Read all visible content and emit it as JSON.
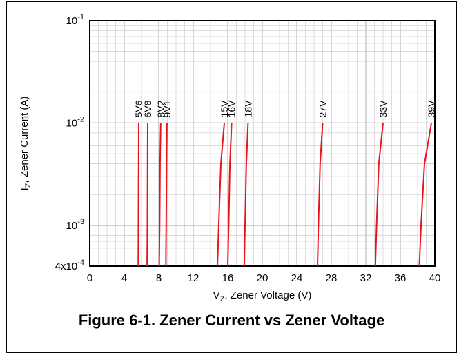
{
  "chart_data": {
    "type": "line",
    "caption": "Figure 6-1. Zener Current vs Zener Voltage",
    "xlabel_main": "V",
    "xlabel_sub": "Z",
    "xlabel_rest": ", Zener Voltage (V)",
    "ylabel_main": "I",
    "ylabel_sub": "Z",
    "ylabel_rest": ", Zener Current (A)",
    "xlim": [
      0,
      40
    ],
    "ylim": [
      0.0004,
      0.1
    ],
    "yscale": "log",
    "grid": true,
    "x_ticks": [
      0,
      4,
      8,
      12,
      16,
      20,
      24,
      28,
      32,
      36,
      40
    ],
    "y_ticks": [
      {
        "value": 0.1,
        "base": "10",
        "exp": "-1",
        "prefix": ""
      },
      {
        "value": 0.01,
        "base": "10",
        "exp": "-2",
        "prefix": ""
      },
      {
        "value": 0.001,
        "base": "10",
        "exp": "-3",
        "prefix": ""
      },
      {
        "value": 0.0004,
        "base": "10",
        "exp": "-4",
        "prefix": "4x"
      }
    ],
    "line_color": "#e8141c",
    "series": [
      {
        "name": "5V6",
        "x": [
          5.62,
          5.64,
          5.66,
          5.68
        ],
        "y": [
          0.0004,
          0.001,
          0.004,
          0.01
        ]
      },
      {
        "name": "6V8",
        "x": [
          6.65,
          6.68,
          6.7,
          6.72
        ],
        "y": [
          0.0004,
          0.001,
          0.004,
          0.01
        ]
      },
      {
        "name": "8V2",
        "x": [
          8.05,
          8.1,
          8.15,
          8.22
        ],
        "y": [
          0.0004,
          0.001,
          0.004,
          0.01
        ]
      },
      {
        "name": "9V1",
        "x": [
          8.82,
          8.86,
          8.9,
          8.95
        ],
        "y": [
          0.0004,
          0.001,
          0.004,
          0.01
        ]
      },
      {
        "name": "15V",
        "x": [
          14.8,
          14.95,
          15.2,
          15.6
        ],
        "y": [
          0.0004,
          0.001,
          0.004,
          0.01
        ]
      },
      {
        "name": "16V",
        "x": [
          16.0,
          16.1,
          16.25,
          16.45
        ],
        "y": [
          0.0004,
          0.001,
          0.004,
          0.01
        ]
      },
      {
        "name": "18V",
        "x": [
          17.9,
          18.0,
          18.15,
          18.35
        ],
        "y": [
          0.0004,
          0.001,
          0.004,
          0.01
        ]
      },
      {
        "name": "27V",
        "x": [
          26.4,
          26.5,
          26.7,
          27.0
        ],
        "y": [
          0.0004,
          0.001,
          0.004,
          0.01
        ]
      },
      {
        "name": "33V",
        "x": [
          33.1,
          33.25,
          33.5,
          34.0
        ],
        "y": [
          0.0004,
          0.001,
          0.004,
          0.01
        ]
      },
      {
        "name": "39V",
        "x": [
          38.2,
          38.4,
          38.8,
          39.6
        ],
        "y": [
          0.0004,
          0.001,
          0.004,
          0.01
        ]
      }
    ]
  }
}
